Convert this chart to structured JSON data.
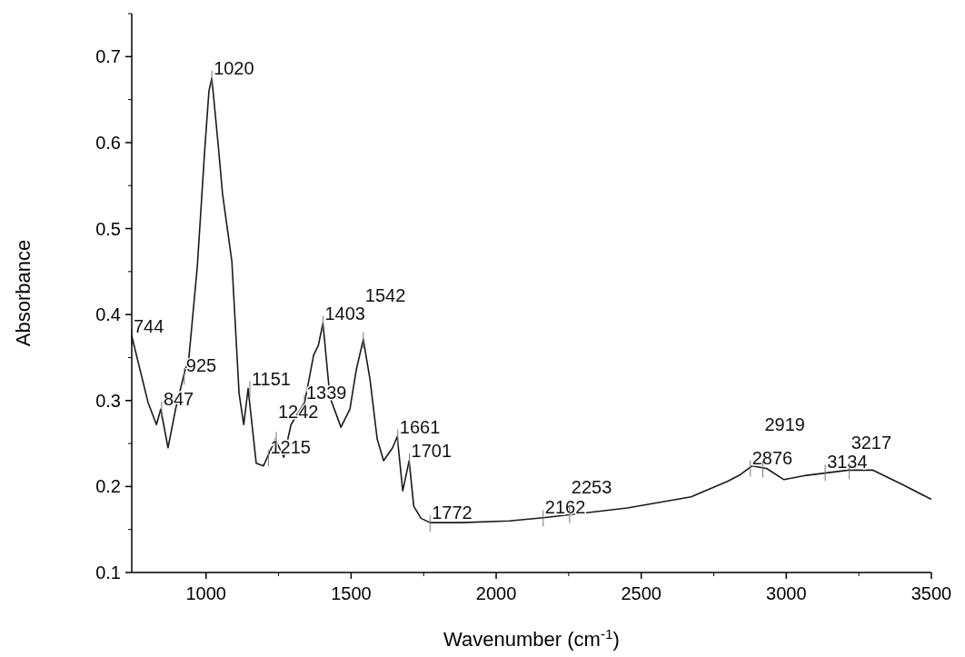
{
  "chart_data": {
    "type": "line",
    "xlabel": "Wavenumber (cm$^{-1}$)",
    "ylabel": "Absorbance",
    "xlim": [
      744,
      3500
    ],
    "ylim": [
      0.1,
      0.75
    ],
    "xticks": [
      1000,
      1500,
      2000,
      2500,
      3000,
      3500
    ],
    "yticks": [
      0.1,
      0.2,
      0.3,
      0.4,
      0.5,
      0.6,
      0.7
    ],
    "grid": false,
    "marker": "none",
    "line_style": "solid",
    "series": [
      {
        "color": "#1a1a1a",
        "x": [
          744,
          800,
          829,
          844,
          869,
          895,
          923,
          941,
          970,
          995,
          1010,
          1020,
          1042,
          1057,
          1089,
          1114,
          1130,
          1145,
          1173,
          1198,
          1239,
          1268,
          1293,
          1340,
          1371,
          1387,
          1403,
          1427,
          1465,
          1496,
          1518,
          1542,
          1565,
          1590,
          1612,
          1643,
          1659,
          1678,
          1700,
          1716,
          1741,
          1772,
          1879,
          2045,
          2170,
          2452,
          2672,
          2797,
          2838,
          2882,
          2932,
          2992,
          3070,
          3214,
          3299,
          3402,
          3500
        ],
        "values": [
          0.375,
          0.298,
          0.272,
          0.29,
          0.245,
          0.29,
          0.329,
          0.35,
          0.456,
          0.589,
          0.66,
          0.675,
          0.597,
          0.54,
          0.462,
          0.308,
          0.272,
          0.314,
          0.227,
          0.224,
          0.255,
          0.234,
          0.272,
          0.298,
          0.353,
          0.364,
          0.39,
          0.304,
          0.269,
          0.29,
          0.336,
          0.371,
          0.325,
          0.255,
          0.23,
          0.245,
          0.258,
          0.195,
          0.23,
          0.177,
          0.163,
          0.158,
          0.158,
          0.16,
          0.164,
          0.175,
          0.188,
          0.206,
          0.213,
          0.224,
          0.221,
          0.208,
          0.213,
          0.219,
          0.219,
          0.202,
          0.185
        ]
      }
    ],
    "annotations": [
      {
        "text": "744",
        "x": 744,
        "y": 0.375
      },
      {
        "text": "847",
        "x": 847,
        "y": 0.29
      },
      {
        "text": "925",
        "x": 925,
        "y": 0.329
      },
      {
        "text": "1020",
        "x": 1020,
        "y": 0.675
      },
      {
        "text": "1151",
        "x": 1151,
        "y": 0.314
      },
      {
        "text": "1215",
        "x": 1215,
        "y": 0.234
      },
      {
        "text": "1242",
        "x": 1242,
        "y": 0.255
      },
      {
        "text": "1339",
        "x": 1339,
        "y": 0.298
      },
      {
        "text": "1403",
        "x": 1403,
        "y": 0.39
      },
      {
        "text": "1542",
        "x": 1542,
        "y": 0.371
      },
      {
        "text": "1661",
        "x": 1661,
        "y": 0.258
      },
      {
        "text": "1701",
        "x": 1701,
        "y": 0.23
      },
      {
        "text": "1772",
        "x": 1772,
        "y": 0.158
      },
      {
        "text": "2162",
        "x": 2162,
        "y": 0.164
      },
      {
        "text": "2253",
        "x": 2253,
        "y": 0.168
      },
      {
        "text": "2876",
        "x": 2876,
        "y": 0.222
      },
      {
        "text": "2919",
        "x": 2919,
        "y": 0.221
      },
      {
        "text": "3134",
        "x": 3134,
        "y": 0.217
      },
      {
        "text": "3217",
        "x": 3217,
        "y": 0.219
      }
    ]
  }
}
